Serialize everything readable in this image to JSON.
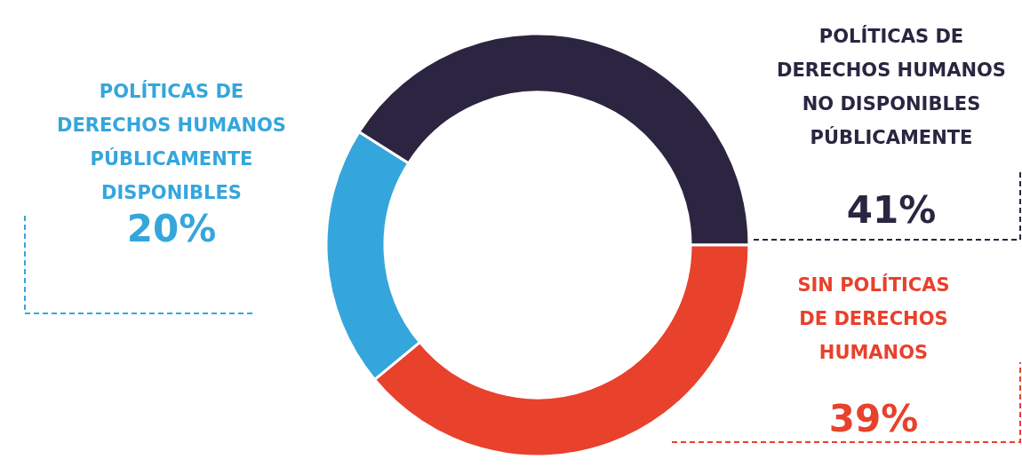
{
  "chart_data": {
    "type": "donut",
    "categories": [
      "POLÍTICAS DE DERECHOS HUMANOS PÚBLICAMENTE DISPONIBLES",
      "POLÍTICAS DE DERECHOS HUMANOS NO DISPONIBLES PÚBLICAMENTE",
      "SIN POLÍTICAS DE DERECHOS HUMANOS"
    ],
    "values": [
      20,
      41,
      39
    ],
    "value_labels": [
      "20%",
      "41%",
      "39%"
    ],
    "colors": [
      "#35a6dc",
      "#2c2541",
      "#e8412c"
    ]
  }
}
